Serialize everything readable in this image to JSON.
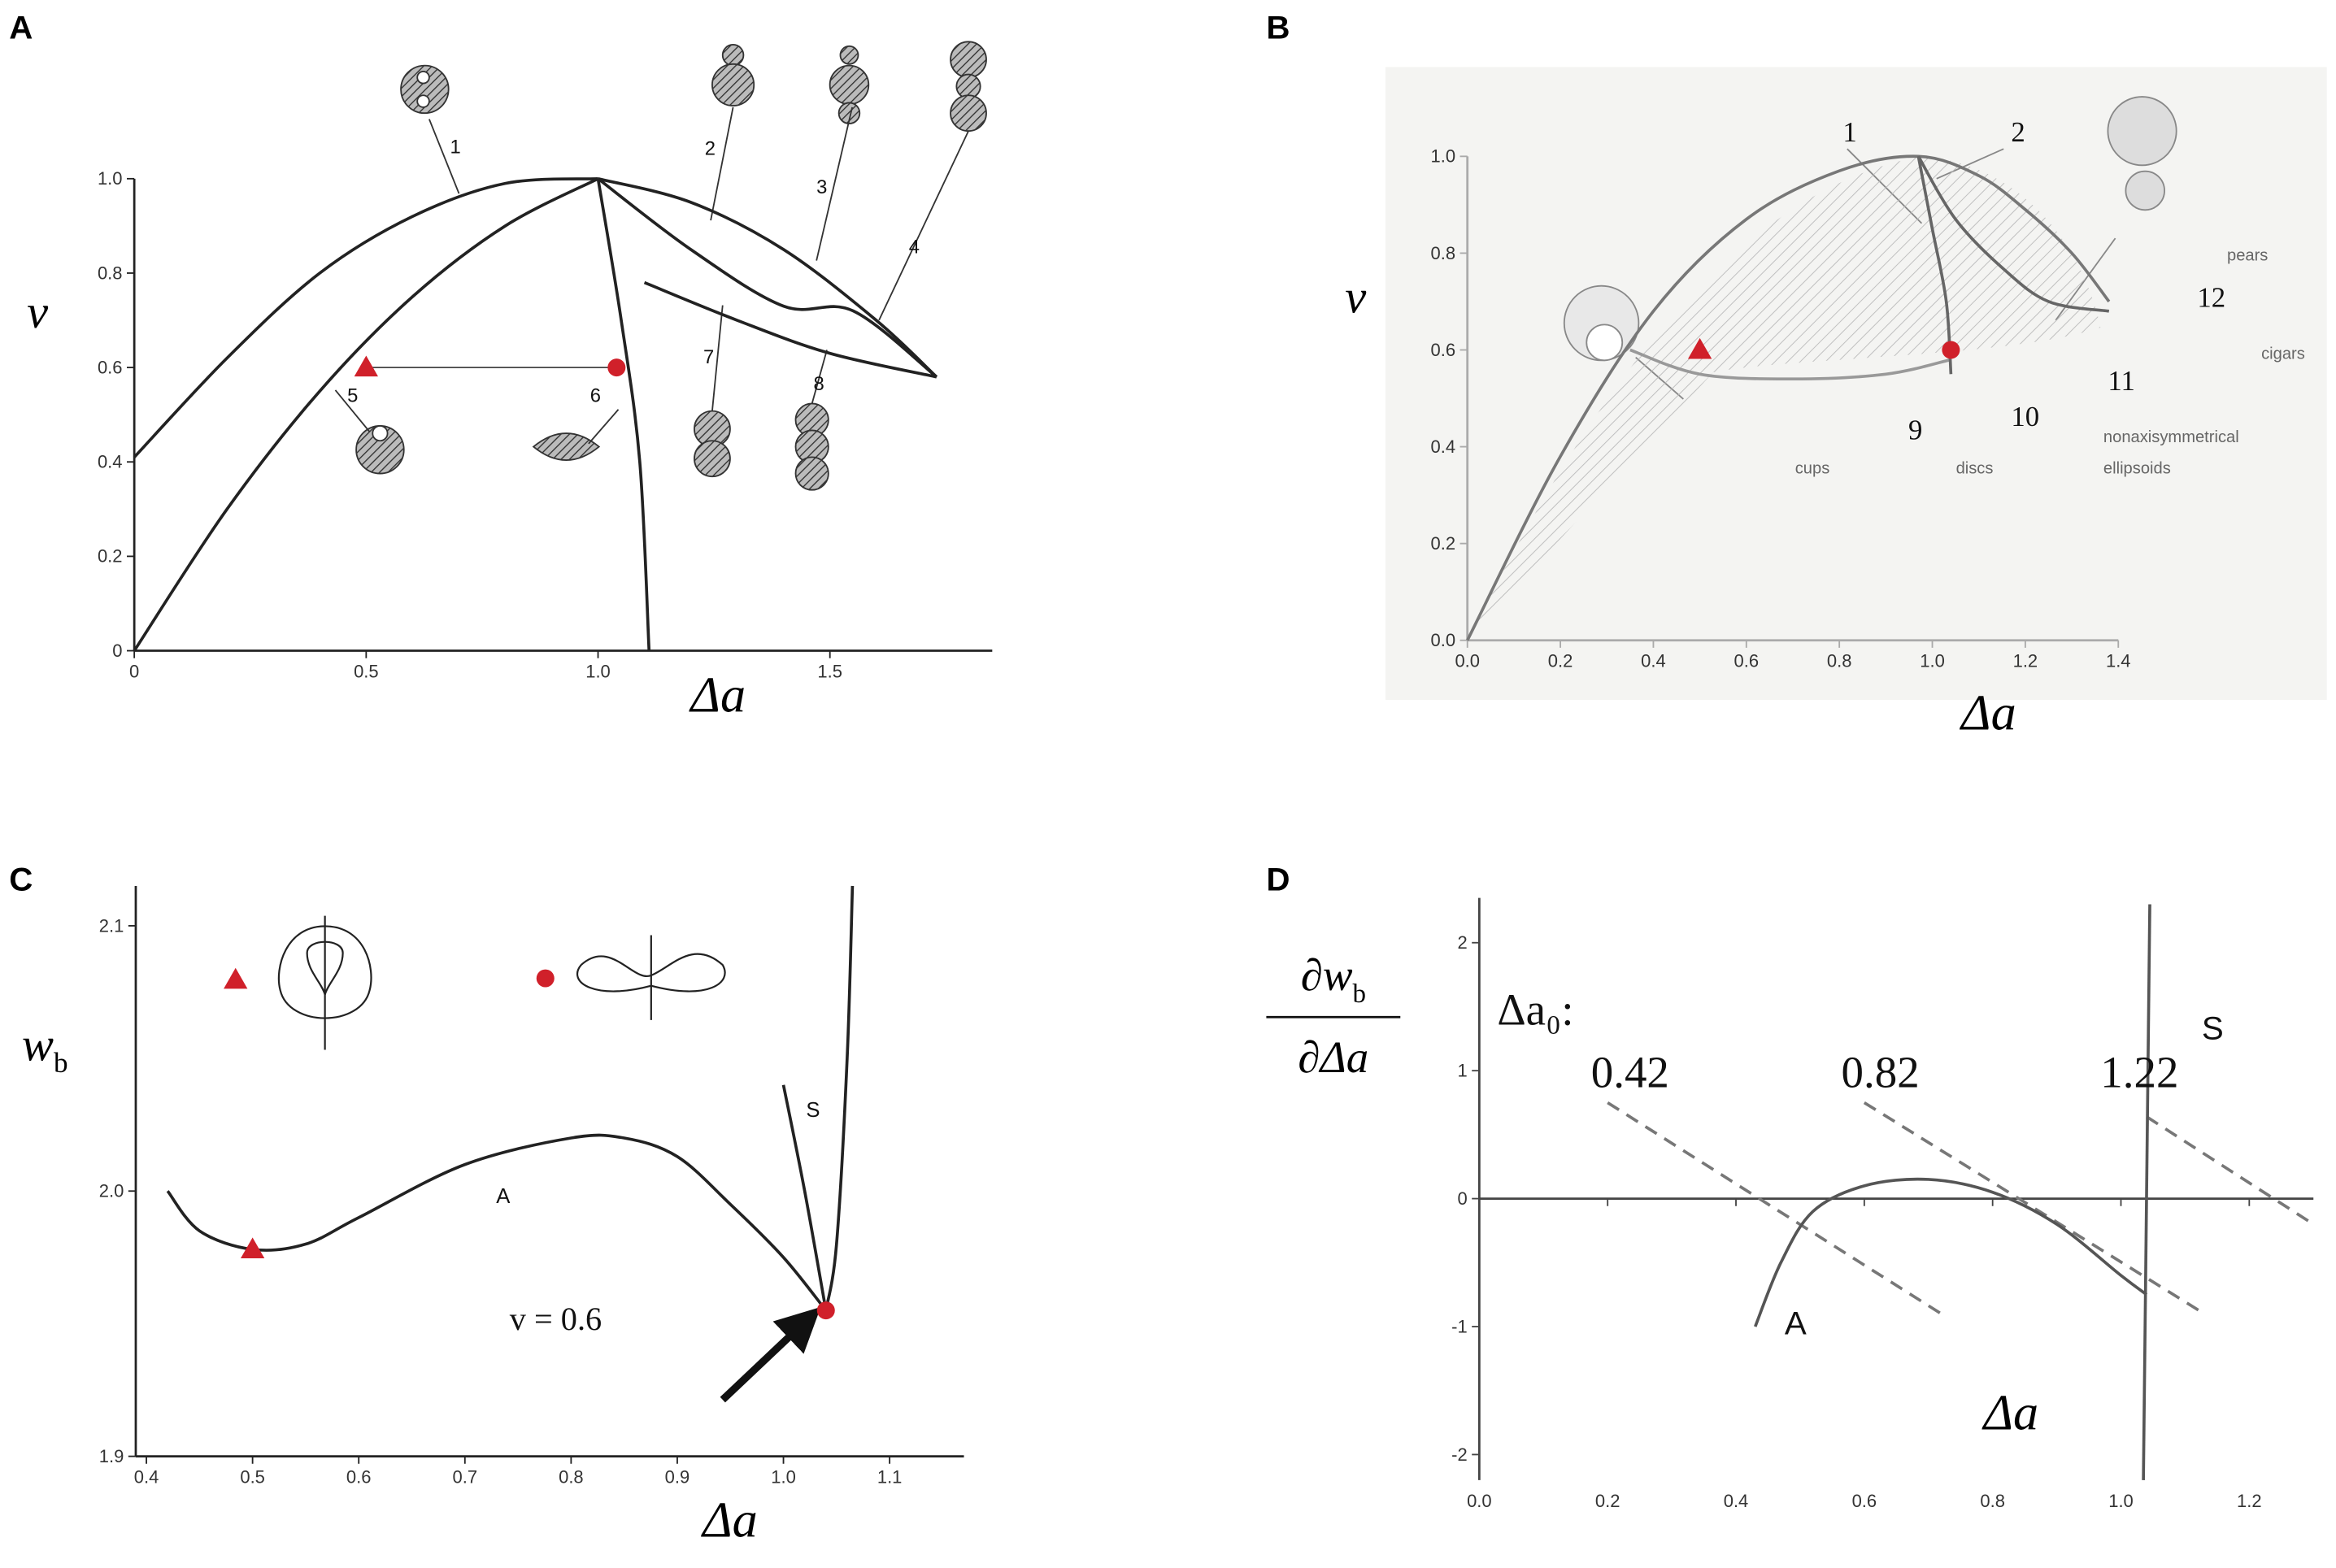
{
  "chart_data": [
    {
      "type": "line",
      "panel": "A",
      "xlabel": {
        "text": "Δa"
      },
      "ylabel": {
        "text": "v"
      },
      "xlim": [
        0,
        1.85
      ],
      "ylim": [
        0,
        1.0
      ],
      "xticks": [
        0,
        0.5,
        {
          "value": 1,
          "label": "1.0"
        },
        1.5
      ],
      "yticks": [
        0,
        0.2,
        0.4,
        0.6,
        0.8,
        {
          "value": 1,
          "label": "1.0"
        }
      ],
      "series": [
        {
          "color": "#222222",
          "x": [
            0,
            0.2,
            0.4,
            0.6,
            0.8,
            1.0
          ],
          "values": [
            0.41,
            0.62,
            0.8,
            0.92,
            0.99,
            1.0
          ]
        },
        {
          "color": "#222222",
          "x": [
            0,
            0.2,
            0.4,
            0.6,
            0.8,
            1.0
          ],
          "values": [
            0,
            0.3,
            0.55,
            0.75,
            0.9,
            1.0
          ]
        },
        {
          "color": "#222222",
          "x": [
            1.0,
            1.05,
            1.09,
            1.11
          ],
          "values": [
            1.0,
            0.7,
            0.4,
            0
          ]
        },
        {
          "color": "#222222",
          "x": [
            1.0,
            1.2,
            1.4,
            1.6,
            1.73
          ],
          "values": [
            1.0,
            0.95,
            0.85,
            0.7,
            0.58
          ]
        },
        {
          "color": "#222222",
          "x": [
            1.0,
            1.2,
            1.4,
            1.55,
            1.73
          ],
          "values": [
            1.0,
            0.85,
            0.73,
            0.72,
            0.58
          ]
        },
        {
          "color": "#222222",
          "x": [
            1.1,
            1.3,
            1.5,
            1.73
          ],
          "values": [
            0.78,
            0.7,
            0.63,
            0.58
          ]
        }
      ],
      "markers": [
        {
          "shape": "triangle",
          "color": "#d0202a",
          "x": 0.5,
          "y": 0.6
        },
        {
          "shape": "circle",
          "color": "#d0202a",
          "x": 1.04,
          "y": 0.6
        }
      ],
      "annotations": [
        "1",
        "2",
        "3",
        "4",
        "5",
        "6",
        "7",
        "8"
      ]
    },
    {
      "type": "line",
      "panel": "B",
      "xlabel": {
        "text": "Δa"
      },
      "ylabel": {
        "text": "v"
      },
      "xlim": [
        0,
        1.4
      ],
      "ylim": [
        0,
        1.0
      ],
      "xticks": [
        {
          "value": 0,
          "label": "0.0"
        },
        0.2,
        0.4,
        0.6,
        0.8,
        {
          "value": 1,
          "label": "1.0"
        },
        1.2,
        1.4
      ],
      "yticks": [
        {
          "value": 0,
          "label": "0.0"
        },
        0.2,
        0.4,
        0.6,
        0.8,
        {
          "value": 1,
          "label": "1.0"
        }
      ],
      "series": [
        {
          "color": "#777777",
          "x": [
            0,
            0.2,
            0.4,
            0.6,
            0.8,
            0.97,
            1.1,
            1.2,
            1.3,
            1.38
          ],
          "values": [
            0,
            0.38,
            0.68,
            0.87,
            0.97,
            1.0,
            0.96,
            0.89,
            0.8,
            0.7
          ]
        },
        {
          "color": "#999999",
          "x": [
            0.35,
            0.5,
            0.7,
            0.9,
            1.04
          ],
          "values": [
            0.6,
            0.55,
            0.54,
            0.55,
            0.58
          ]
        },
        {
          "color": "#666666",
          "x": [
            0.97,
            1.0,
            1.03,
            1.04
          ],
          "values": [
            1.0,
            0.85,
            0.7,
            0.55
          ]
        },
        {
          "color": "#666666",
          "x": [
            0.97,
            1.05,
            1.15,
            1.25,
            1.38
          ],
          "values": [
            1.0,
            0.87,
            0.77,
            0.7,
            0.68
          ]
        }
      ],
      "markers": [
        {
          "shape": "triangle",
          "color": "#d0202a",
          "x": 0.5,
          "y": 0.6
        },
        {
          "shape": "circle",
          "color": "#d0202a",
          "x": 1.04,
          "y": 0.6
        }
      ],
      "annotations": [
        "1",
        "2",
        "pears",
        "12",
        "cigars",
        "11",
        "10",
        "9",
        "cups",
        "discs",
        "nonaxisymmetrical",
        "ellipsoids"
      ]
    },
    {
      "type": "line",
      "panel": "C",
      "xlabel": {
        "text": "Δa"
      },
      "ylabel": {
        "text": "w",
        "sub": "b"
      },
      "xlim": [
        0.39,
        1.17
      ],
      "ylim": [
        1.9,
        2.115
      ],
      "xticks": [
        0.4,
        0.5,
        0.6,
        0.7,
        0.8,
        0.9,
        {
          "value": 1,
          "label": "1.0"
        },
        1.1
      ],
      "yticks": [
        1.9,
        {
          "value": 2,
          "label": "2.0"
        },
        2.1
      ],
      "series": [
        {
          "color": "#222222",
          "x": [
            0.42,
            0.45,
            0.5,
            0.55,
            0.6,
            0.7,
            0.8,
            0.85,
            0.9,
            0.95,
            1.0,
            1.04
          ],
          "values": [
            2.0,
            1.985,
            1.978,
            1.98,
            1.99,
            2.01,
            2.02,
            2.02,
            2.013,
            1.995,
            1.975,
            1.955
          ]
        },
        {
          "color": "#222222",
          "x": [
            1.0,
            1.02,
            1.04
          ],
          "values": [
            2.04,
            2.0,
            1.955
          ]
        },
        {
          "color": "#222222",
          "x": [
            1.04,
            1.05,
            1.06,
            1.065
          ],
          "values": [
            1.955,
            1.98,
            2.05,
            2.115
          ]
        }
      ],
      "markers": [
        {
          "shape": "triangle",
          "color": "#d0202a",
          "x": 0.5,
          "y": 1.978
        },
        {
          "shape": "circle",
          "color": "#d0202a",
          "x": 1.04,
          "y": 1.955
        }
      ],
      "annotations": [
        "S",
        "A",
        "v = 0.6"
      ]
    },
    {
      "type": "line",
      "panel": "D",
      "xlabel": {
        "text": "Δa"
      },
      "ylabel": {
        "text": "∂w",
        "sub": "b",
        "denominator": "∂Δa"
      },
      "xlim": [
        0,
        1.3
      ],
      "ylim": [
        -2.2,
        2.35
      ],
      "xticks": [
        {
          "value": 0,
          "label": "0.0"
        },
        0.2,
        0.4,
        0.6,
        0.8,
        {
          "value": 1,
          "label": "1.0"
        },
        1.2
      ],
      "yticks": [
        -2,
        -1,
        0,
        1,
        2
      ],
      "series": [
        {
          "color": "#777777",
          "dashed": true,
          "x": [
            0.2,
            0.72
          ],
          "values": [
            0.75,
            -0.9
          ]
        },
        {
          "color": "#777777",
          "dashed": true,
          "x": [
            0.6,
            1.13
          ],
          "values": [
            0.75,
            -0.9
          ]
        },
        {
          "color": "#777777",
          "dashed": true,
          "x": [
            1.04,
            1.3
          ],
          "values": [
            0.64,
            -0.2
          ]
        },
        {
          "color": "#555555",
          "x": [
            0.43,
            0.47,
            0.52,
            0.6,
            0.7,
            0.8,
            0.9,
            1.0,
            1.04
          ],
          "values": [
            -1.0,
            -0.5,
            -0.1,
            0.1,
            0.15,
            0.05,
            -0.2,
            -0.6,
            -0.75
          ]
        },
        {
          "color": "#555555",
          "x": [
            1.045,
            1.035
          ],
          "values": [
            2.3,
            -2.2
          ]
        }
      ],
      "annotations": [
        "Δa₀:",
        "0.42",
        "0.82",
        "1.22",
        "S",
        "A"
      ]
    }
  ]
}
